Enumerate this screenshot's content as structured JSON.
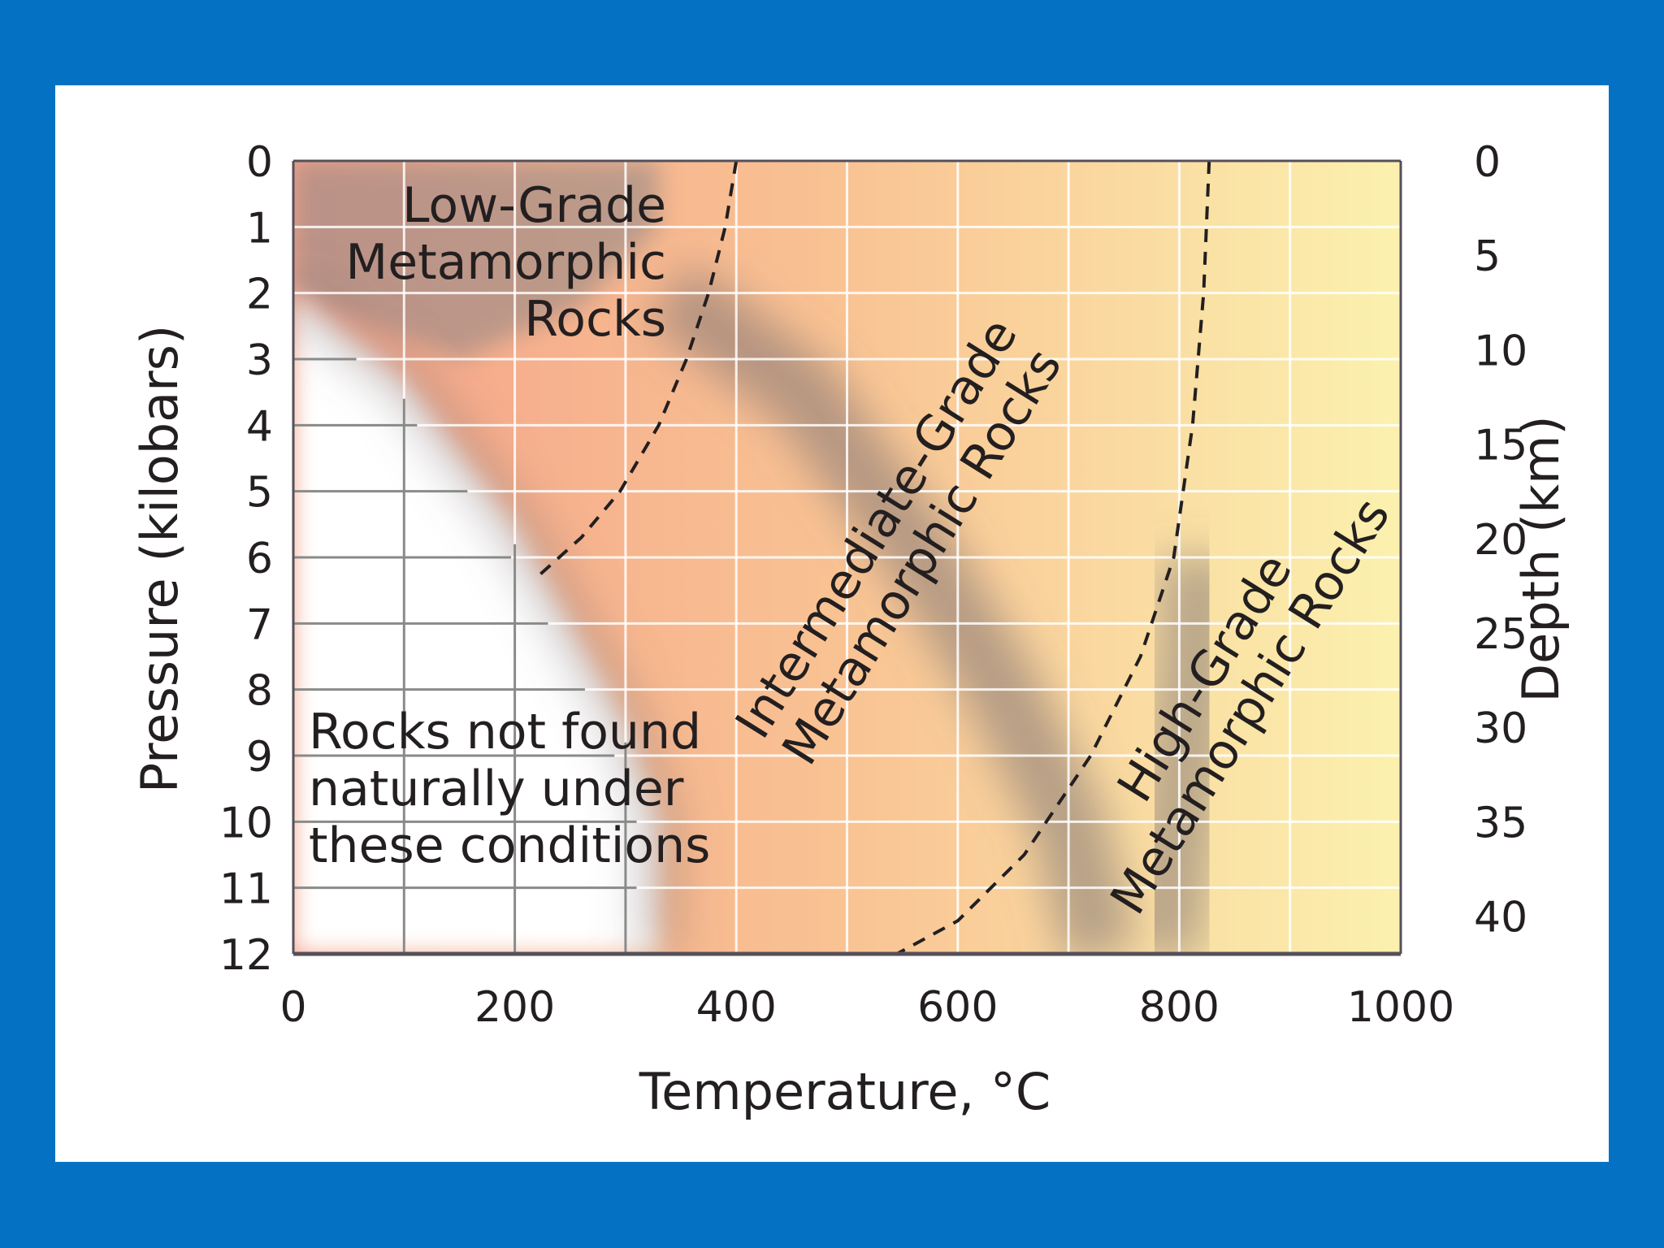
{
  "colors": {
    "frame": "#0571c3",
    "panel": "#ffffff",
    "grid": "#ffffff",
    "plot_border": "#55505a",
    "region_fill_low": "#f4a289",
    "region_fill_high": "#fbf1ae",
    "band_shadow": "#7d7272",
    "text": "#231f20"
  },
  "chart_data": {
    "type": "area",
    "title": "",
    "xlabel": "Temperature, °C",
    "ylabel_left": "Pressure (kilobars)",
    "ylabel_right": "Depth (km)",
    "xlim": [
      0,
      1000
    ],
    "ylim_pressure": [
      0,
      12
    ],
    "ylim_depth": [
      0,
      42
    ],
    "y_inverted": true,
    "grid": true,
    "x_ticks": [
      0,
      200,
      400,
      600,
      800,
      1000
    ],
    "x_minor_grid": [
      100,
      300,
      500,
      700,
      900
    ],
    "pressure_ticks": [
      0,
      1,
      2,
      3,
      4,
      5,
      6,
      7,
      8,
      9,
      10,
      11,
      12
    ],
    "depth_ticks": [
      0,
      5,
      10,
      15,
      20,
      25,
      30,
      35,
      40
    ],
    "regions": [
      {
        "name": "Low-Grade Metamorphic Rocks",
        "lines": [
          "Low-Grade",
          "Metamorphic",
          "Rocks"
        ]
      },
      {
        "name": "Intermediate-Grade Metamorphic Rocks",
        "lines": [
          "Intermediate-Grade",
          "Metamorphic Rocks"
        ]
      },
      {
        "name": "High-Grade Metamorphic Rocks",
        "lines": [
          "High-Grade",
          "Metamorphic Rocks"
        ]
      },
      {
        "name": "Rocks not found naturally under these conditions",
        "lines": [
          "Rocks not found",
          "naturally under",
          "these conditions"
        ]
      }
    ],
    "boundaries": [
      {
        "name": "no-rocks limit",
        "style": "shaded band",
        "points": [
          [
            0,
            2.0
          ],
          [
            100,
            3.3
          ],
          [
            200,
            5.5
          ],
          [
            300,
            8.5
          ],
          [
            330,
            10
          ],
          [
            330,
            12
          ]
        ]
      },
      {
        "name": "low / intermediate grade boundary",
        "style": "dashed",
        "points": [
          [
            400,
            0
          ],
          [
            390,
            1
          ],
          [
            375,
            2
          ],
          [
            355,
            3
          ],
          [
            330,
            4
          ],
          [
            295,
            5
          ],
          [
            260,
            5.7
          ],
          [
            220,
            6.3
          ]
        ]
      },
      {
        "name": "intermediate grade shadow band",
        "style": "shaded band",
        "points": [
          [
            340,
            2.0
          ],
          [
            460,
            3.5
          ],
          [
            560,
            5.8
          ],
          [
            640,
            8.0
          ],
          [
            700,
            10.0
          ],
          [
            730,
            12.0
          ]
        ]
      },
      {
        "name": "intermediate / high grade boundary",
        "style": "dashed",
        "points": [
          [
            827,
            0
          ],
          [
            822,
            2
          ],
          [
            812,
            4
          ],
          [
            795,
            6
          ],
          [
            765,
            7.5
          ],
          [
            720,
            9
          ],
          [
            660,
            10.5
          ],
          [
            600,
            11.5
          ],
          [
            545,
            12
          ]
        ]
      },
      {
        "name": "high grade shadow band",
        "style": "shaded band",
        "points": [
          [
            820,
            6.0
          ],
          [
            812,
            8.0
          ],
          [
            800,
            10.0
          ],
          [
            785,
            12.0
          ]
        ]
      }
    ]
  }
}
